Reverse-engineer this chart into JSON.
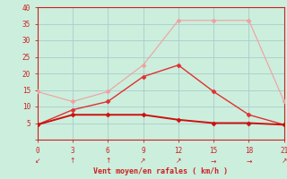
{
  "x": [
    0,
    3,
    6,
    9,
    12,
    15,
    18,
    21
  ],
  "line1_y": [
    14.5,
    11.5,
    14.5,
    22.5,
    36,
    36,
    36,
    11.5
  ],
  "line2_y": [
    4.5,
    9.0,
    11.5,
    19.0,
    22.5,
    14.5,
    7.5,
    4.5
  ],
  "line3_y": [
    4.5,
    7.5,
    7.5,
    7.5,
    6.0,
    5.0,
    5.0,
    4.5
  ],
  "line1_color": "#f0a0a0",
  "line2_color": "#e03030",
  "line3_color": "#cc1010",
  "bg_color": "#cceedd",
  "grid_color": "#aacccc",
  "axis_color": "#cc2020",
  "tick_color": "#cc2020",
  "xlabel": "Vent moyen/en rafales ( km/h )",
  "ylim": [
    0,
    40
  ],
  "xlim": [
    0,
    21
  ],
  "yticks": [
    0,
    5,
    10,
    15,
    20,
    25,
    30,
    35,
    40
  ],
  "xticks": [
    0,
    3,
    6,
    9,
    12,
    15,
    18,
    21
  ],
  "arrows": [
    "↙",
    "↑",
    "↑",
    "↗",
    "↗",
    "→",
    "→",
    "↗"
  ],
  "marker": "D",
  "markersize": 2.5,
  "linewidth1": 0.8,
  "linewidth2": 1.0,
  "linewidth3": 1.4
}
